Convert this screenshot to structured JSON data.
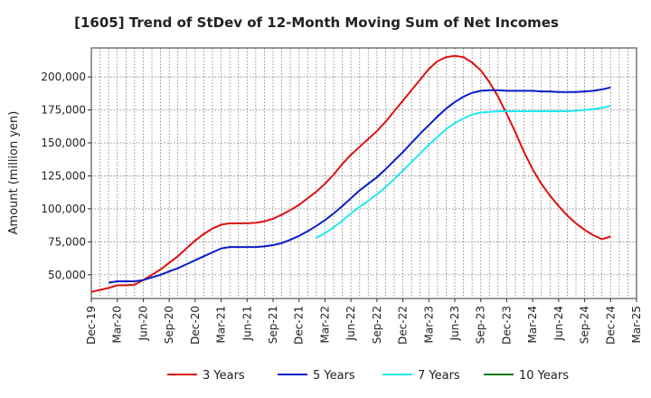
{
  "chart_data": {
    "type": "line",
    "title": "[1605]  Trend of StDev of 12-Month Moving Sum of Net Incomes",
    "ylabel": "Amount (million yen)",
    "xlabel": "",
    "xlim": [
      "2019-12",
      "2025-03"
    ],
    "ylim": [
      32000,
      222000
    ],
    "x_ticks": [
      "Dec-19",
      "Mar-20",
      "Jun-20",
      "Sep-20",
      "Dec-20",
      "Mar-21",
      "Jun-21",
      "Sep-21",
      "Dec-21",
      "Mar-22",
      "Jun-22",
      "Sep-22",
      "Dec-22",
      "Mar-23",
      "Jun-23",
      "Sep-23",
      "Dec-23",
      "Mar-24",
      "Jun-24",
      "Sep-24",
      "Dec-24",
      "Mar-25"
    ],
    "y_ticks": [
      50000,
      75000,
      100000,
      125000,
      150000,
      175000,
      200000
    ],
    "y_tick_labels": [
      "50,000",
      "75,000",
      "100,000",
      "125,000",
      "150,000",
      "175,000",
      "200,000"
    ],
    "grid": true,
    "legend_position": "bottom",
    "series": [
      {
        "name": "3 Years",
        "color": "#dd1111",
        "x": [
          "2019-12",
          "2020-01",
          "2020-02",
          "2020-03",
          "2020-04",
          "2020-05",
          "2020-06",
          "2020-07",
          "2020-08",
          "2020-09",
          "2020-10",
          "2020-11",
          "2020-12",
          "2021-01",
          "2021-02",
          "2021-03",
          "2021-04",
          "2021-05",
          "2021-06",
          "2021-07",
          "2021-08",
          "2021-09",
          "2021-10",
          "2021-11",
          "2021-12",
          "2022-01",
          "2022-02",
          "2022-03",
          "2022-04",
          "2022-05",
          "2022-06",
          "2022-07",
          "2022-08",
          "2022-09",
          "2022-10",
          "2022-11",
          "2022-12",
          "2023-01",
          "2023-02",
          "2023-03",
          "2023-04",
          "2023-05",
          "2023-06",
          "2023-07",
          "2023-08",
          "2023-09",
          "2023-10",
          "2023-11",
          "2023-12",
          "2024-01",
          "2024-02",
          "2024-03",
          "2024-04",
          "2024-05",
          "2024-06",
          "2024-07",
          "2024-08",
          "2024-09",
          "2024-10",
          "2024-11",
          "2024-12"
        ],
        "values": [
          37000,
          38500,
          40000,
          42000,
          42000,
          42500,
          46000,
          50000,
          54000,
          59000,
          64000,
          70000,
          76000,
          81000,
          85000,
          88000,
          89000,
          89000,
          89000,
          89500,
          90500,
          92500,
          95500,
          99000,
          103000,
          108000,
          113000,
          119000,
          126000,
          134000,
          141000,
          147000,
          153000,
          159000,
          166000,
          174000,
          182000,
          190000,
          198000,
          206000,
          212000,
          215000,
          216000,
          215000,
          211000,
          205000,
          196000,
          185000,
          172000,
          158000,
          143000,
          130000,
          119000,
          110000,
          102000,
          95000,
          89000,
          84000,
          80000,
          77000,
          79000
        ]
      },
      {
        "name": "5 Years",
        "color": "#0a1bc8",
        "x": [
          "2020-02",
          "2020-03",
          "2020-04",
          "2020-05",
          "2020-06",
          "2020-07",
          "2020-08",
          "2020-09",
          "2020-10",
          "2020-11",
          "2020-12",
          "2021-01",
          "2021-02",
          "2021-03",
          "2021-04",
          "2021-05",
          "2021-06",
          "2021-07",
          "2021-08",
          "2021-09",
          "2021-10",
          "2021-11",
          "2021-12",
          "2022-01",
          "2022-02",
          "2022-03",
          "2022-04",
          "2022-05",
          "2022-06",
          "2022-07",
          "2022-08",
          "2022-09",
          "2022-10",
          "2022-11",
          "2022-12",
          "2023-01",
          "2023-02",
          "2023-03",
          "2023-04",
          "2023-05",
          "2023-06",
          "2023-07",
          "2023-08",
          "2023-09",
          "2023-10",
          "2023-11",
          "2023-12",
          "2024-01",
          "2024-02",
          "2024-03",
          "2024-04",
          "2024-05",
          "2024-06",
          "2024-07",
          "2024-08",
          "2024-09",
          "2024-10",
          "2024-11",
          "2024-12"
        ],
        "values": [
          44000,
          45000,
          45000,
          45000,
          46000,
          48000,
          50000,
          52500,
          55000,
          58000,
          61000,
          64000,
          67000,
          70000,
          71000,
          71000,
          71000,
          71000,
          71500,
          72500,
          74000,
          76500,
          79500,
          83000,
          87000,
          91500,
          96500,
          102000,
          108000,
          114000,
          119000,
          124000,
          130000,
          136500,
          143000,
          150000,
          157000,
          163500,
          170000,
          176000,
          181000,
          185000,
          188000,
          189500,
          190000,
          190000,
          189500,
          189500,
          189500,
          189500,
          189000,
          189000,
          188500,
          188500,
          188500,
          189000,
          189500,
          190500,
          192000
        ]
      },
      {
        "name": "7 Years",
        "color": "#22e8ee",
        "x": [
          "2022-02",
          "2022-03",
          "2022-04",
          "2022-05",
          "2022-06",
          "2022-07",
          "2022-08",
          "2022-09",
          "2022-10",
          "2022-11",
          "2022-12",
          "2023-01",
          "2023-02",
          "2023-03",
          "2023-04",
          "2023-05",
          "2023-06",
          "2023-07",
          "2023-08",
          "2023-09",
          "2023-10",
          "2023-11",
          "2023-12",
          "2024-01",
          "2024-02",
          "2024-03",
          "2024-04",
          "2024-05",
          "2024-06",
          "2024-07",
          "2024-08",
          "2024-09",
          "2024-10",
          "2024-11",
          "2024-12"
        ],
        "values": [
          78000,
          81500,
          86000,
          91000,
          96500,
          101500,
          106000,
          111000,
          116500,
          122500,
          129000,
          135500,
          142000,
          148500,
          154500,
          160500,
          165000,
          168500,
          171500,
          173000,
          173500,
          174000,
          174000,
          174000,
          174000,
          174000,
          174000,
          174000,
          174000,
          174000,
          174500,
          175000,
          175500,
          176500,
          178000
        ]
      },
      {
        "name": "10 Years",
        "color": "#1a7a1a",
        "x": [],
        "values": []
      }
    ]
  }
}
